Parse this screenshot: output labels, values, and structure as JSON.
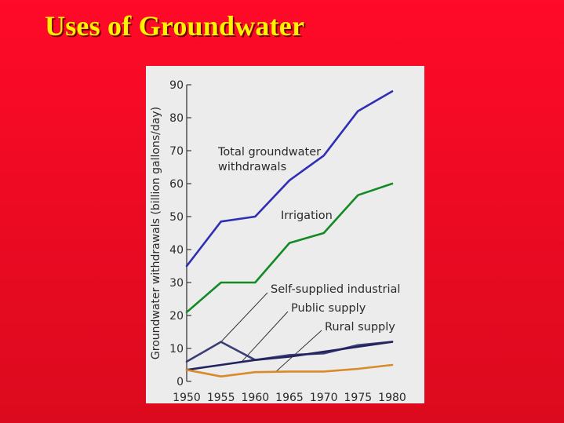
{
  "slide": {
    "title": "Uses of Groundwater"
  },
  "chart_data": {
    "type": "line",
    "title": "",
    "xlabel": "",
    "ylabel": "Groundwater withdrawals (billion gallons/day)",
    "x": [
      1950,
      1955,
      1960,
      1965,
      1970,
      1975,
      1980
    ],
    "xlim": [
      1950,
      1980
    ],
    "ylim": [
      0,
      90
    ],
    "yticks": [
      0,
      10,
      20,
      30,
      40,
      50,
      60,
      70,
      80,
      90
    ],
    "series": [
      {
        "name": "Total groundwater withdrawals",
        "color": "#2f2fb5",
        "values": [
          35,
          48.5,
          50,
          61,
          68.5,
          82,
          88
        ]
      },
      {
        "name": "Irrigation",
        "color": "#138a25",
        "values": [
          21,
          30,
          30,
          42,
          45,
          56.5,
          60
        ]
      },
      {
        "name": "Self-supplied industrial",
        "color": "#3a3f73",
        "values": [
          6,
          12,
          6.5,
          8,
          8.5,
          11,
          12
        ]
      },
      {
        "name": "Public supply",
        "color": "#23235f",
        "values": [
          3.5,
          5,
          6.5,
          7.5,
          9,
          10.5,
          12
        ]
      },
      {
        "name": "Rural supply",
        "color": "#d98a2a",
        "values": [
          3.5,
          1.5,
          2.8,
          3,
          3,
          3.8,
          5
        ]
      }
    ],
    "annotations": [
      {
        "text_lines": [
          "Total groundwater",
          "withdrawals"
        ]
      },
      {
        "text_lines": [
          "Irrigation"
        ]
      },
      {
        "text_lines": [
          "Self-supplied industrial"
        ]
      },
      {
        "text_lines": [
          "Public supply"
        ]
      },
      {
        "text_lines": [
          "Rural supply"
        ]
      }
    ],
    "grid": false,
    "legend": "inline labels"
  }
}
